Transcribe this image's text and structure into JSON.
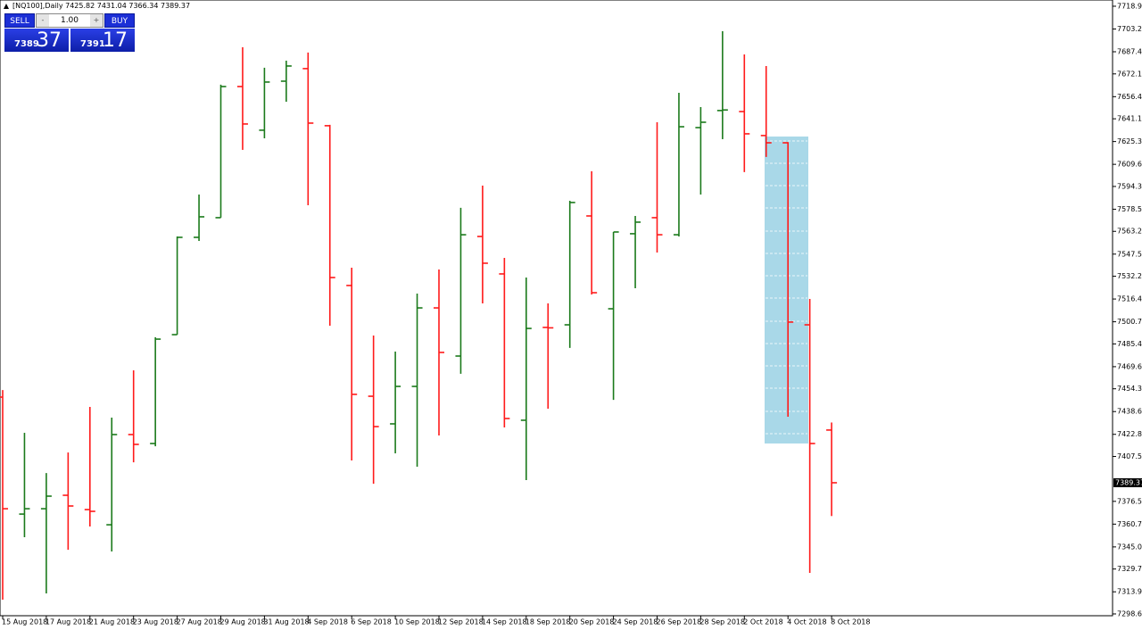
{
  "header": "[NQ100],Daily  7425.82 7431.04 7366.34 7389.37",
  "trade_panel": {
    "sell": "SELL",
    "lots": "1.00",
    "buy": "BUY",
    "bid_main": "7389",
    "bid_pips": "37",
    "ask_main": "7391",
    "ask_pips": "17"
  },
  "chart_data": {
    "type": "ohlc",
    "categories": [
      "15 Aug 2018",
      null,
      "17 Aug 2018",
      null,
      "21 Aug 2018",
      null,
      "23 Aug 2018",
      null,
      "27 Aug 2018",
      null,
      "29 Aug 2018",
      null,
      "31 Aug 2018",
      null,
      "4 Sep 2018",
      null,
      "6 Sep 2018",
      null,
      "10 Sep 2018",
      null,
      "12 Sep 2018",
      null,
      "14 Sep 2018",
      null,
      "18 Sep 2018",
      null,
      "20 Sep 2018",
      null,
      "24 Sep 2018",
      null,
      "26 Sep 2018",
      null,
      "28 Sep 2018",
      null,
      "2 Oct 2018",
      null,
      "4 Oct 2018",
      null,
      "8 Oct 2018"
    ],
    "open": [
      7448.6,
      7367.7,
      7371.4,
      7380.7,
      7370.8,
      7360.3,
      7422.7,
      7416.5,
      7491.8,
      7559.1,
      7572.7,
      7663.4,
      7633.2,
      7667.1,
      7675.8,
      7636.3,
      7525.8,
      7449.2,
      7430.1,
      7456.0,
      7510.3,
      7477.0,
      7559.7,
      7533.8,
      7432.6,
      7496.8,
      7498.6,
      7573.9,
      7509.7,
      7561.6,
      7572.7,
      7560.9,
      7635.0,
      7646.8,
      7646.1,
      7629.5,
      7624.5,
      7498.6,
      7425.82
    ],
    "high": [
      7453.5,
      7423.9,
      7396.1,
      7410.3,
      7441.8,
      7434.4,
      7467.1,
      7490.0,
      7559.7,
      7588.7,
      7664.7,
      7690.6,
      7676.4,
      7681.3,
      7686.9,
      7636.9,
      7538.1,
      7491.2,
      7480.1,
      7520.2,
      7536.9,
      7579.5,
      7594.9,
      7544.9,
      7531.3,
      7513.4,
      7584.4,
      7604.8,
      7562.8,
      7573.9,
      7638.7,
      7659.1,
      7649.2,
      7701.7,
      7685.6,
      7677.6,
      7625.0,
      7516.5,
      7431.04
    ],
    "low": [
      7308.5,
      7351.7,
      7312.8,
      7343.0,
      7359.1,
      7341.8,
      7403.5,
      7414.6,
      7491.8,
      7556.6,
      7572.7,
      7619.6,
      7627.6,
      7652.9,
      7581.3,
      7498.0,
      7404.8,
      7388.7,
      7409.7,
      7400.5,
      7422.1,
      7464.7,
      7513.4,
      7427.6,
      7391.2,
      7440.6,
      7482.6,
      7519.6,
      7446.7,
      7523.9,
      7548.6,
      7559.7,
      7588.7,
      7627.0,
      7604.2,
      7614.7,
      7435.0,
      7327.0,
      7366.34
    ],
    "close": [
      7371.4,
      7371.4,
      7380.1,
      7373.3,
      7369.6,
      7422.7,
      7415.9,
      7488.7,
      7559.1,
      7573.3,
      7663.4,
      7637.5,
      7666.5,
      7677.6,
      7638.1,
      7531.3,
      7450.5,
      7428.2,
      7456.0,
      7510.3,
      7479.5,
      7560.9,
      7541.2,
      7433.8,
      7496.1,
      7496.5,
      7583.2,
      7520.8,
      7562.8,
      7569.6,
      7560.9,
      7635.6,
      7638.7,
      7647.2,
      7630.7,
      7624.5,
      7500.5,
      7416.5,
      7389.37
    ],
    "up_color": "#1b7a1b",
    "down_color": "#ff1a1a",
    "ylim": [
      7297.4,
      7721.4
    ],
    "yticks": [
      7718.95,
      {
        "value": 7703.2,
        "label": "7703.20"
      },
      7687.45,
      7672.15,
      {
        "value": 7656.4,
        "label": "7656.40"
      },
      {
        "value": 7641.1,
        "label": "7641.10"
      },
      7625.35,
      {
        "value": 7609.6,
        "label": "7609.60"
      },
      {
        "value": 7594.3,
        "label": "7594.30"
      },
      7578.55,
      7563.25,
      {
        "value": 7547.5,
        "label": "7547.50"
      },
      {
        "value": 7532.2,
        "label": "7532.20"
      },
      7516.45,
      {
        "value": 7500.7,
        "label": "7500.70"
      },
      {
        "value": 7485.4,
        "label": "7485.40"
      },
      7469.65,
      7454.35,
      {
        "value": 7438.6,
        "label": "7438.60"
      },
      7422.85,
      7407.55,
      {
        "value": 7376.5,
        "label": "7376.50"
      },
      7360.75,
      {
        "value": 7345.0,
        "label": "7345.00"
      },
      {
        "value": 7329.7,
        "label": "7329.70"
      },
      7313.95,
      7298.65
    ],
    "current_price": 7389.37
  }
}
